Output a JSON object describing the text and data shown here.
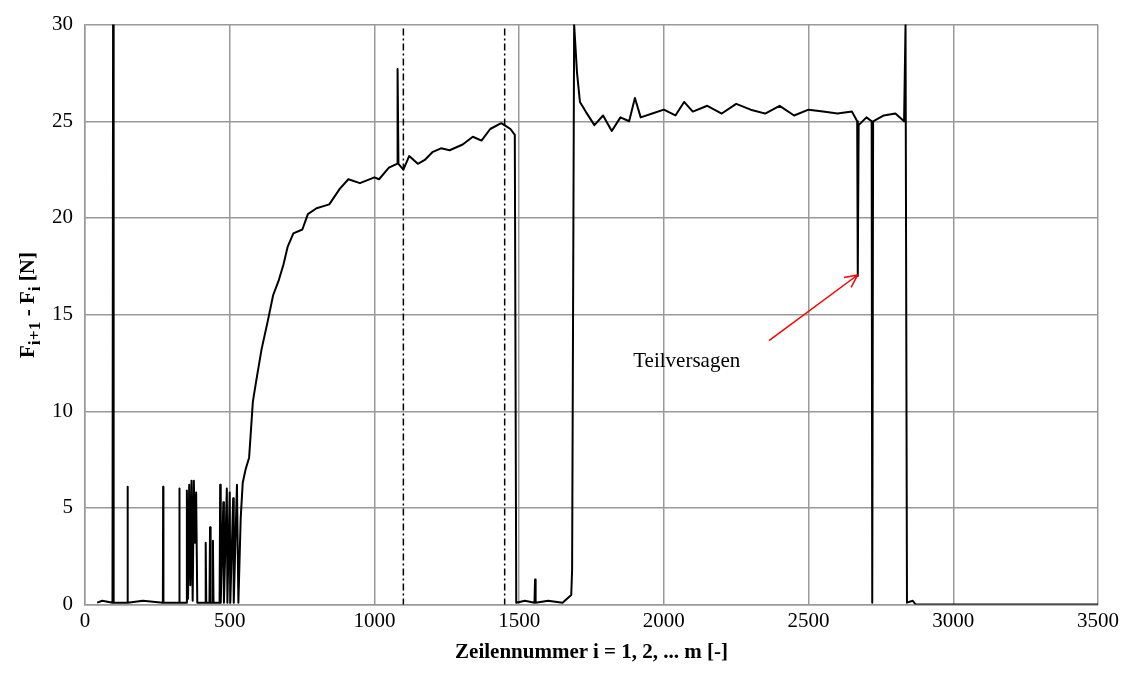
{
  "chart_data": {
    "type": "line",
    "xlabel": "Zeilennummer i = 1, 2, ... m [-]",
    "ylabel": "F$_{i+1}$ - F$_{i}$ [N]",
    "xlim": [
      0,
      3500
    ],
    "xticks": [
      0,
      500,
      1000,
      1500,
      2000,
      2500,
      3000,
      3500
    ],
    "ylim": [
      0,
      30
    ],
    "yticks": [
      0,
      5,
      10,
      15,
      20,
      25,
      30
    ],
    "grid": true,
    "legend": false,
    "marker": "none",
    "line_style": "solid",
    "series": [
      {
        "color": "#000000",
        "x": [
          42,
          60,
          95,
          97,
          99,
          146,
          147,
          148,
          200,
          269,
          270,
          271,
          325,
          326,
          327,
          350,
          352,
          356,
          360,
          364,
          368,
          372,
          376,
          380,
          384,
          388,
          415,
          417,
          419,
          430,
          432,
          434,
          440,
          442,
          444,
          465,
          467,
          469,
          478,
          480,
          490,
          492,
          500,
          502,
          512,
          514,
          525,
          530,
          538,
          545,
          555,
          567,
          580,
          593,
          610,
          632,
          650,
          670,
          686,
          700,
          720,
          751,
          770,
          800,
          844,
          880,
          910,
          950,
          1000,
          1016,
          1050,
          1078,
          1080,
          1083,
          1100,
          1120,
          1150,
          1174,
          1200,
          1230,
          1260,
          1305,
          1340,
          1370,
          1400,
          1438,
          1470,
          1485,
          1490,
          1520,
          1553,
          1555,
          1557,
          1600,
          1650,
          1680,
          1683,
          1690,
          1700,
          1710,
          1730,
          1760,
          1790,
          1820,
          1850,
          1880,
          1900,
          1920,
          1960,
          2000,
          2040,
          2070,
          2100,
          2150,
          2200,
          2250,
          2300,
          2350,
          2400,
          2450,
          2500,
          2550,
          2600,
          2650,
          2668,
          2670,
          2673,
          2700,
          2718,
          2720,
          2723,
          2760,
          2800,
          2830,
          2835,
          2840,
          2860,
          2870,
          3500
        ],
        "values": [
          0.1,
          0.2,
          0.1,
          30,
          0.1,
          0.1,
          6.1,
          0.1,
          0.2,
          0.1,
          6.1,
          0.1,
          0.1,
          6.0,
          0.1,
          0.1,
          5.9,
          0.3,
          6.2,
          1.0,
          6.4,
          0.2,
          6.4,
          3.2,
          5.8,
          0.1,
          0.1,
          3.2,
          0.1,
          0.1,
          4.0,
          0.1,
          0.1,
          3.3,
          0.1,
          0.1,
          6.2,
          0.1,
          5.3,
          0.1,
          6.0,
          0.1,
          5.8,
          0.1,
          5.5,
          0.1,
          6.2,
          0.1,
          4.5,
          6.3,
          7.0,
          7.6,
          10.5,
          11.7,
          13.2,
          14.7,
          16.0,
          16.8,
          17.6,
          18.5,
          19.2,
          19.4,
          20.2,
          20.5,
          20.7,
          21.5,
          22.0,
          21.8,
          22.1,
          22.0,
          22.6,
          22.8,
          27.7,
          22.8,
          22.5,
          23.2,
          22.8,
          23.0,
          23.4,
          23.6,
          23.5,
          23.8,
          24.2,
          24.0,
          24.6,
          24.9,
          24.6,
          24.3,
          0.1,
          0.2,
          0.1,
          1.3,
          0.1,
          0.2,
          0.1,
          0.5,
          1.8,
          30,
          27.5,
          26.0,
          25.5,
          24.8,
          25.3,
          24.5,
          25.2,
          25.0,
          26.2,
          25.2,
          25.4,
          25.6,
          25.3,
          26.0,
          25.5,
          25.8,
          25.4,
          25.9,
          25.6,
          25.4,
          25.8,
          25.3,
          25.6,
          25.5,
          25.4,
          25.5,
          25.0,
          17.0,
          24.8,
          25.2,
          25.0,
          0.1,
          25.0,
          25.3,
          25.4,
          25.0,
          30,
          0.1,
          0.2,
          0,
          0
        ]
      }
    ],
    "ref_lines": [
      {
        "axis": "x",
        "value": 1100,
        "color": "#000000",
        "line_style": "dashed"
      },
      {
        "axis": "x",
        "value": 1450,
        "color": "#000000",
        "line_style": "dashed"
      }
    ],
    "annotations": [
      "Teilversagen"
    ]
  }
}
